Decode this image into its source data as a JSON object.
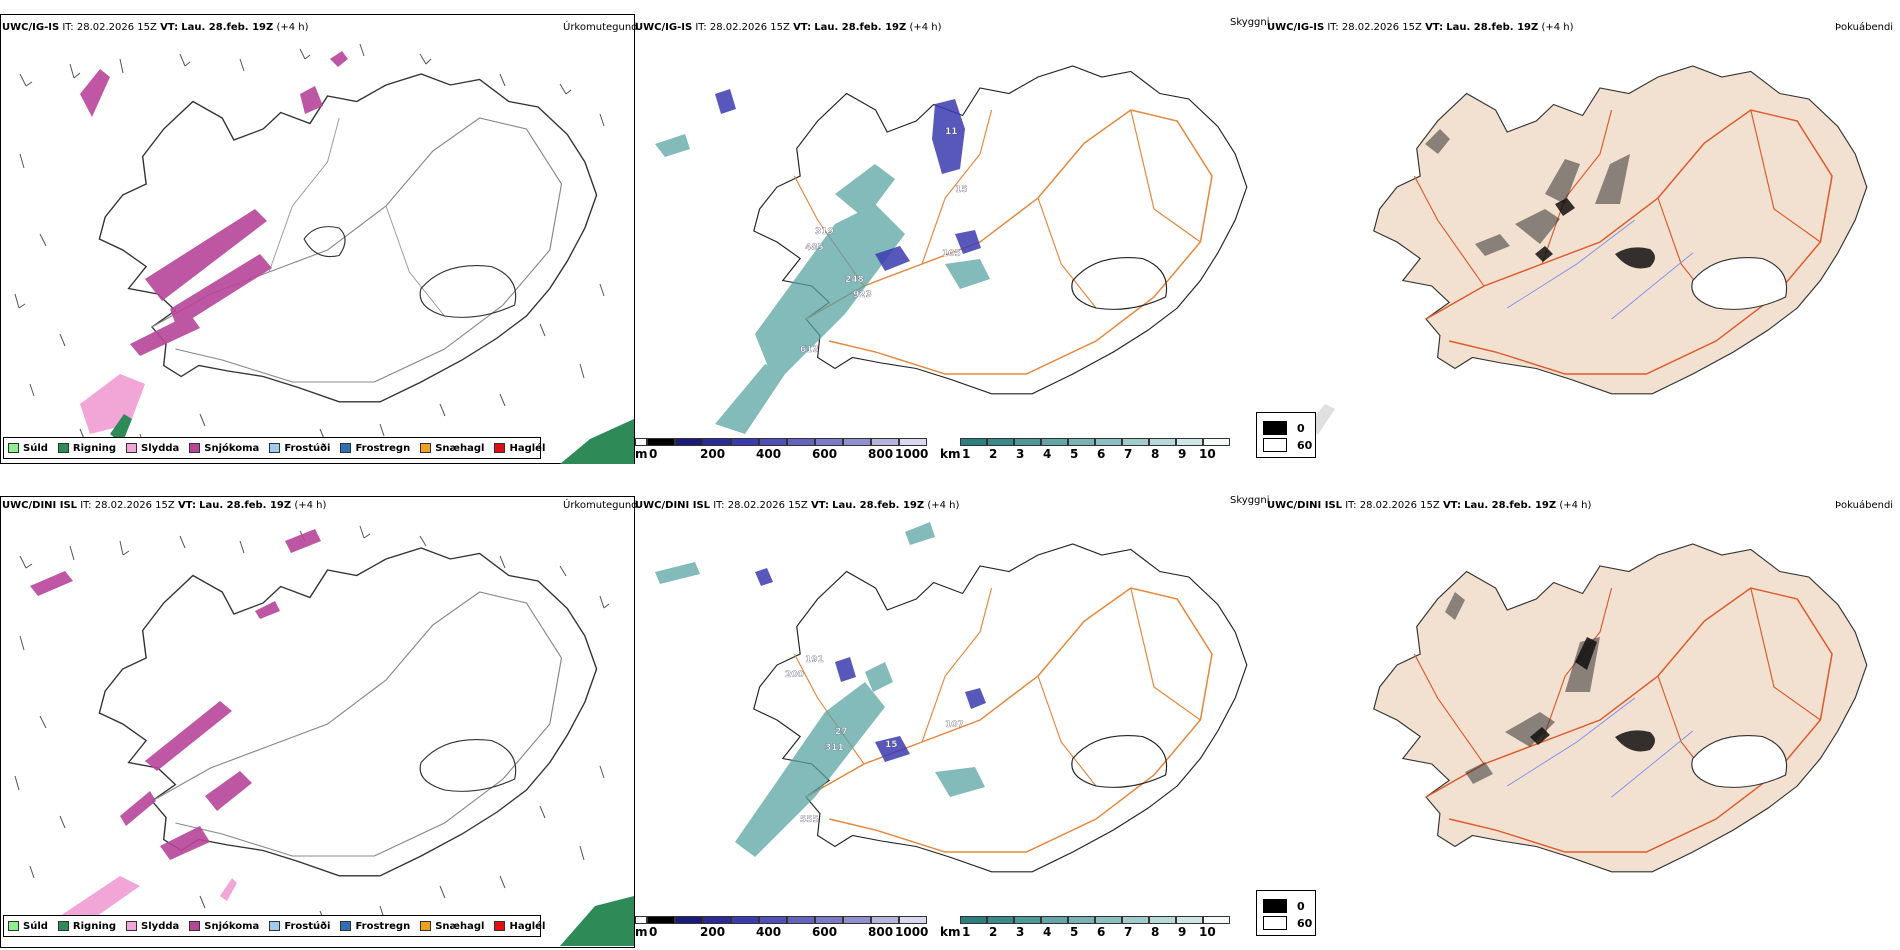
{
  "rows": [
    {
      "model": "UWC/IG-IS",
      "it_label": "IT:",
      "it_value": "28.02.2026 15Z",
      "vt_label": "VT:",
      "vt_value": "Lau. 28.feb. 19Z",
      "lead": "(+4 h)"
    },
    {
      "model": "UWC/DINI ISL",
      "it_label": "IT:",
      "it_value": "28.02.2026 15Z",
      "vt_label": "VT:",
      "vt_value": "Lau. 28.feb. 19Z",
      "lead": "(+4 h)"
    }
  ],
  "panel_titles": {
    "precip_type": "Úrkomutegund",
    "visibility": "Skyggni",
    "fog": "Þokuábendi"
  },
  "precip_legend": [
    {
      "label": "Súld",
      "color": "#90ee90"
    },
    {
      "label": "Rigning",
      "color": "#2e8b57"
    },
    {
      "label": "Slydda",
      "color": "#f2a6d8"
    },
    {
      "label": "Snjókoma",
      "color": "#b8459a"
    },
    {
      "label": "Frostúði",
      "color": "#9ecbf0"
    },
    {
      "label": "Frostregn",
      "color": "#2f6fb3"
    },
    {
      "label": "Snæhagl",
      "color": "#f0a020"
    },
    {
      "label": "Haglél",
      "color": "#e01010"
    }
  ],
  "cloud_base_scale": {
    "unit": "m",
    "ticks": [
      "0",
      "200",
      "400",
      "600",
      "800",
      "1000"
    ],
    "colors": [
      "#000000",
      "#1a1a7a",
      "#2a2a99",
      "#3b3bb0",
      "#5050b8",
      "#6464c0",
      "#7a7ac8",
      "#9090d0",
      "#a8a8d8",
      "#c0c0e4",
      "#d8d8f0"
    ]
  },
  "visibility_scale": {
    "unit": "km",
    "ticks": [
      "1",
      "2",
      "3",
      "4",
      "5",
      "6",
      "7",
      "8",
      "9",
      "10"
    ],
    "colors": [
      "#2a7f7f",
      "#3a8a8a",
      "#4f9898",
      "#64a6a6",
      "#78b2b2",
      "#8cbfbf",
      "#a2cccc",
      "#b8d9d9",
      "#cfe6e6",
      "#e6f2f2"
    ]
  },
  "fog_legend": [
    {
      "label": "0",
      "color": "#000000"
    },
    {
      "label": "60",
      "color": "#ffffff"
    }
  ],
  "visibility_labels_row1": [
    "319",
    "485",
    "248",
    "923",
    "613",
    "105",
    "15",
    "11"
  ],
  "visibility_labels_row2": [
    "27",
    "311",
    "191",
    "200",
    "555",
    "107",
    "15"
  ]
}
